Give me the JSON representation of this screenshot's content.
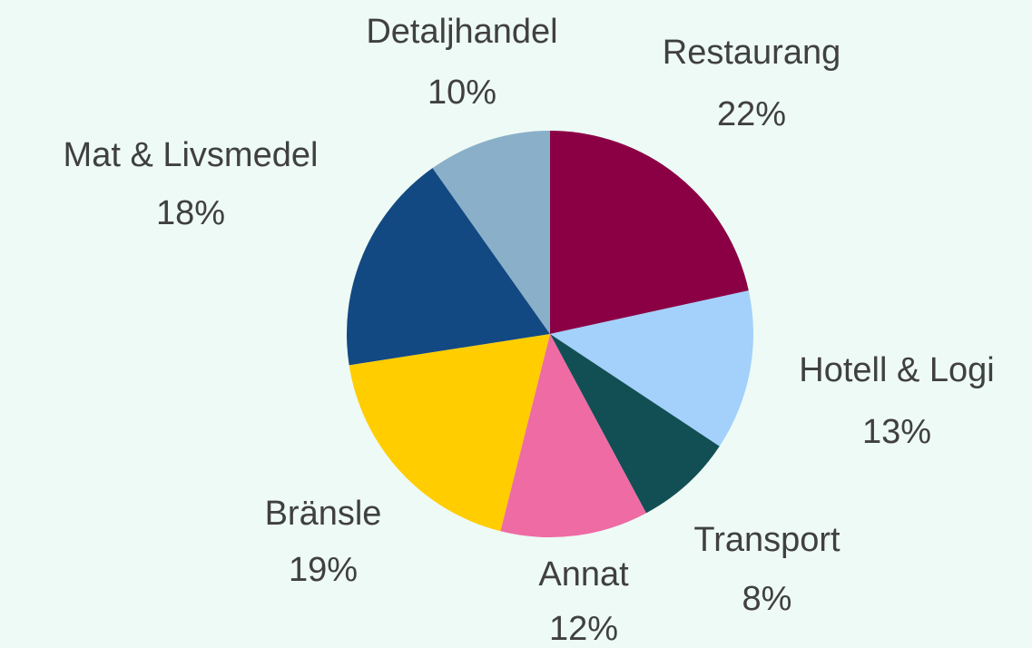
{
  "chart_data": {
    "type": "pie",
    "categories": [
      "Restaurang",
      "Hotell & Logi",
      "Transport",
      "Annat",
      "Bränsle",
      "Mat & Livsmedel",
      "Detaljhandel"
    ],
    "values": [
      22,
      13,
      8,
      12,
      19,
      18,
      10
    ],
    "value_labels": [
      "22%",
      "13%",
      "8%",
      "12%",
      "19%",
      "18%",
      "10%"
    ],
    "colors": [
      "#8b0045",
      "#a3d1fb",
      "#124f54",
      "#ee6ba4",
      "#ffcd00",
      "#134982",
      "#8aafc9"
    ]
  }
}
